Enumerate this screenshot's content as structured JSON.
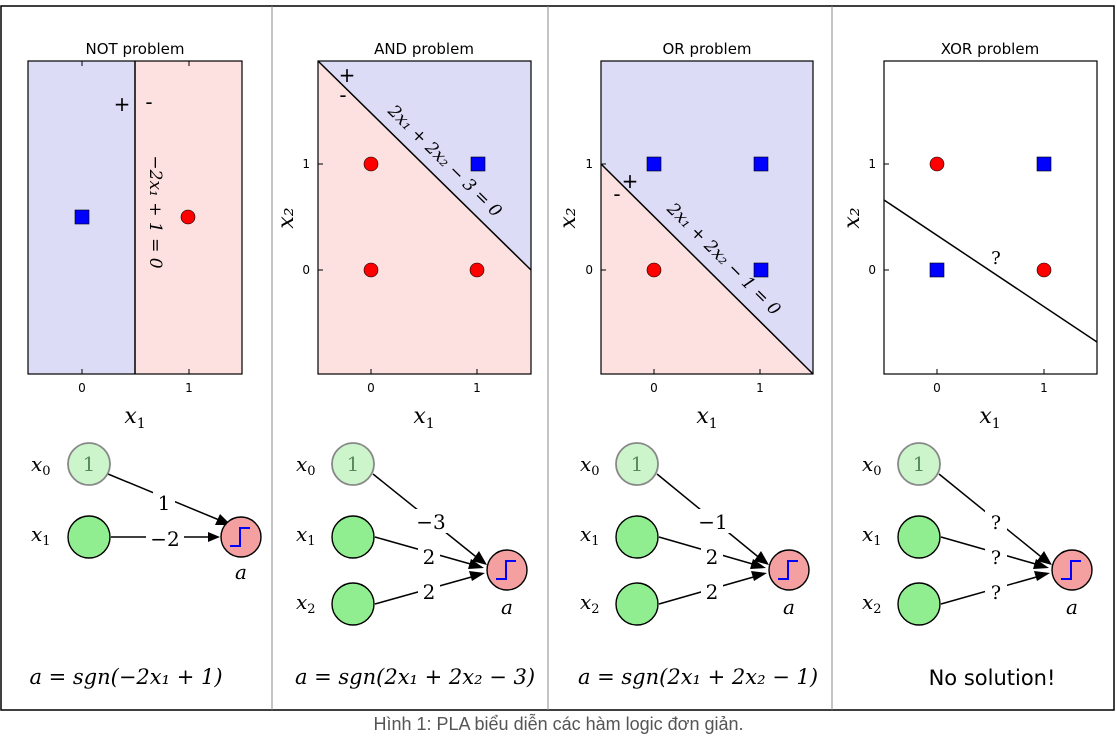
{
  "caption": "Hình 1: PLA biểu diễn các hàm logic đơn giản.",
  "colors": {
    "blue_region": "#dcdcf7",
    "red_region": "#fde0e0",
    "blue_point": "#0000ff",
    "red_point": "#ff0000",
    "bias_node": "#ccf5cc",
    "input_node": "#90ee90",
    "output_node": "#f4a0a0"
  },
  "panels": [
    {
      "title": "NOT problem",
      "xlabel": "x",
      "xlabel_sub": "1",
      "ylabel": "",
      "xticks": [
        "0",
        "1"
      ],
      "yticks": [],
      "line_label": "−2x₁ + 1 = 0",
      "plus": "+",
      "minus": "-",
      "nodes": [
        {
          "name": "x",
          "sub": "0",
          "value": "1"
        },
        {
          "name": "x",
          "sub": "1",
          "value": ""
        }
      ],
      "weights": [
        "1",
        "−2"
      ],
      "output": "a",
      "formula": "a = sgn(−2x₁ + 1)"
    },
    {
      "title": "AND problem",
      "xlabel": "x",
      "xlabel_sub": "1",
      "ylabel": "x₂",
      "xticks": [
        "0",
        "1"
      ],
      "yticks": [
        "0",
        "1"
      ],
      "line_label": "2x₁ + 2x₂ − 3 = 0",
      "plus": "+",
      "minus": "-",
      "nodes": [
        {
          "name": "x",
          "sub": "0",
          "value": "1"
        },
        {
          "name": "x",
          "sub": "1",
          "value": ""
        },
        {
          "name": "x",
          "sub": "2",
          "value": ""
        }
      ],
      "weights": [
        "−3",
        "2",
        "2"
      ],
      "output": "a",
      "formula": "a = sgn(2x₁ + 2x₂ − 3)"
    },
    {
      "title": "OR problem",
      "xlabel": "x",
      "xlabel_sub": "1",
      "ylabel": "x₂",
      "xticks": [
        "0",
        "1"
      ],
      "yticks": [
        "0",
        "1"
      ],
      "line_label": "2x₁ + 2x₂ − 1 = 0",
      "plus": "+",
      "minus": "-",
      "nodes": [
        {
          "name": "x",
          "sub": "0",
          "value": "1"
        },
        {
          "name": "x",
          "sub": "1",
          "value": ""
        },
        {
          "name": "x",
          "sub": "2",
          "value": ""
        }
      ],
      "weights": [
        "−1",
        "2",
        "2"
      ],
      "output": "a",
      "formula": "a = sgn(2x₁ + 2x₂ − 1)"
    },
    {
      "title": "XOR problem",
      "xlabel": "x",
      "xlabel_sub": "1",
      "ylabel": "x₂",
      "xticks": [
        "0",
        "1"
      ],
      "yticks": [
        "0",
        "1"
      ],
      "line_label": "?",
      "plus": "",
      "minus": "",
      "nodes": [
        {
          "name": "x",
          "sub": "0",
          "value": "1"
        },
        {
          "name": "x",
          "sub": "1",
          "value": ""
        },
        {
          "name": "x",
          "sub": "2",
          "value": ""
        }
      ],
      "weights": [
        "?",
        "?",
        "?"
      ],
      "output": "a",
      "formula": "No solution!"
    }
  ]
}
